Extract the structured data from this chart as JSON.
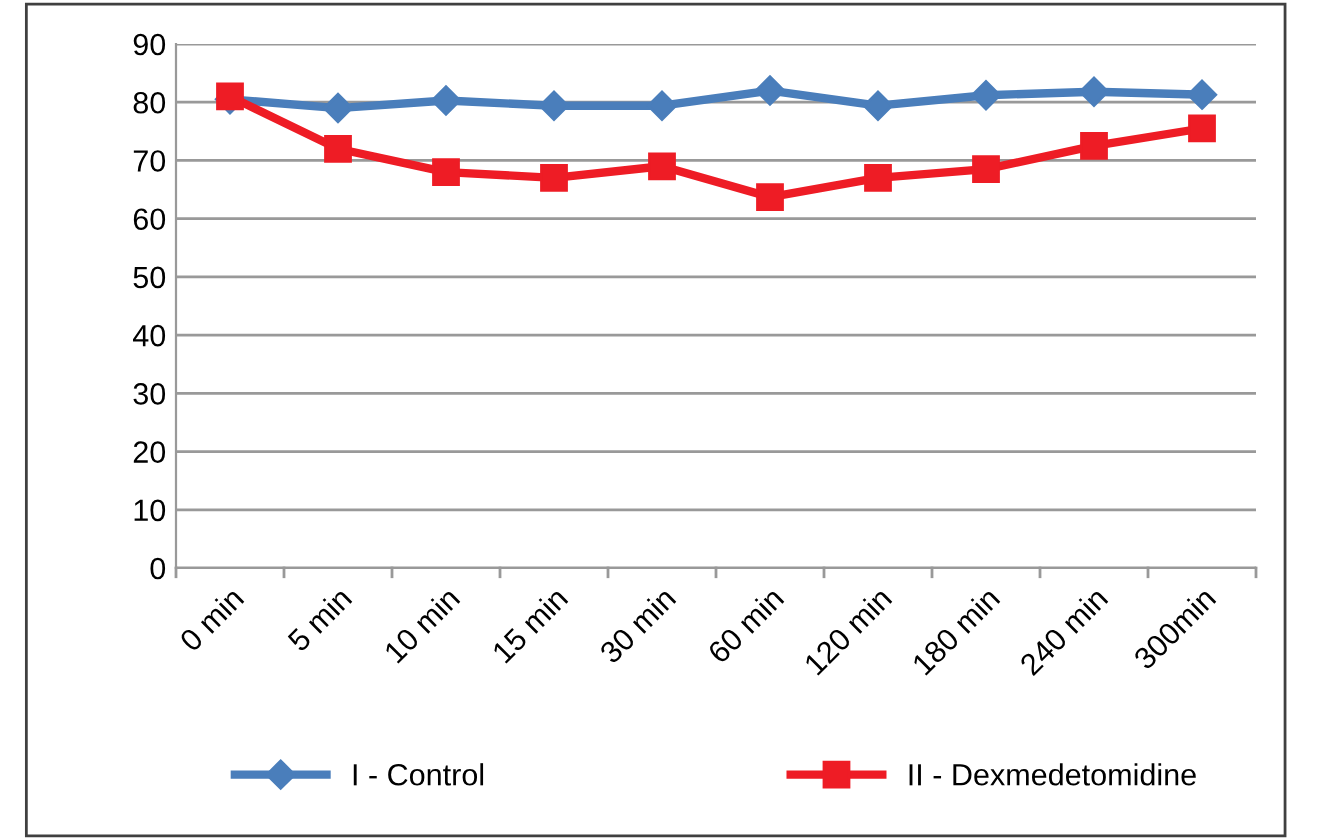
{
  "chart_data": {
    "type": "line",
    "categories": [
      "0 min",
      "5 min",
      "10 min",
      "15 min",
      "30 min",
      "60 min",
      "120 min",
      "180 min",
      "240 min",
      "300min"
    ],
    "series": [
      {
        "name": "I - Control",
        "color": "#4a7ebb",
        "marker": "diamond",
        "values": [
          80.5,
          79,
          80.3,
          79.4,
          79.4,
          82,
          79.4,
          81.2,
          81.8,
          81.3
        ]
      },
      {
        "name": "II - Dexmedetomidine",
        "color": "#ee1c25",
        "marker": "square",
        "values": [
          81,
          72,
          68,
          67,
          69,
          63.7,
          67,
          68.5,
          72.5,
          75.5
        ]
      }
    ],
    "ylim": [
      0,
      90
    ],
    "yticks": [
      0,
      10,
      20,
      30,
      40,
      50,
      60,
      70,
      80,
      90
    ],
    "grid": "y",
    "legend": "bottom",
    "line_style": "solid"
  }
}
